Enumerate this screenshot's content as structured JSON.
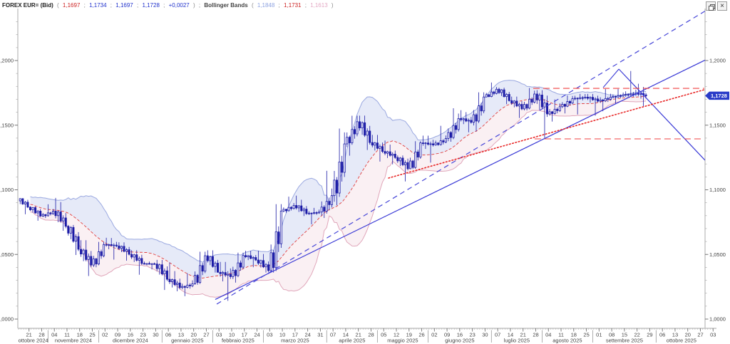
{
  "header": {
    "instrument": "FOREX EUR= (Bid)",
    "po": "(",
    "sc": ";",
    "pc": ")",
    "semi": ";",
    "quote": {
      "open": "1,1697",
      "high": "1,1734",
      "low": "1,1697",
      "last": "1,1728",
      "change": "+0,0027"
    },
    "indicator_label": "Bollinger Bands",
    "indicator_values": {
      "upper": "1,1848",
      "middle": "1,1731",
      "lower": "1,1613"
    }
  },
  "window_controls": {
    "restore_label": "restore",
    "close_label": "×"
  },
  "price_badge": {
    "label": "1,1728",
    "price": 1.1728,
    "bg": "#2a3cc8",
    "text_color": "#ffffff"
  },
  "y_axis": {
    "major": [
      {
        "label": "1,2000",
        "price": 1.2
      },
      {
        "label": "1,1500",
        "price": 1.15
      },
      {
        "label": "1,1000",
        "price": 1.1
      },
      {
        "label": "1,0500",
        "price": 1.05
      },
      {
        "label": "1,0000",
        "price": 1.0
      }
    ],
    "minor_step": 0.01,
    "min": 1.0,
    "max": 1.235
  },
  "x_axis": {
    "day_ticks": [
      "21",
      "28",
      "04",
      "11",
      "18",
      "25",
      "02",
      "09",
      "16",
      "23",
      "30",
      "06",
      "13",
      "20",
      "27",
      "03",
      "10",
      "17",
      "24",
      "03",
      "10",
      "17",
      "24",
      "31",
      "07",
      "14",
      "21",
      "28",
      "05",
      "12",
      "19",
      "26",
      "02",
      "09",
      "16",
      "23",
      "30",
      "07",
      "14",
      "21",
      "28",
      "04",
      "11",
      "18",
      "25",
      "01",
      "08",
      "15",
      "22",
      "29",
      "06",
      "13",
      "20",
      "27",
      "03"
    ],
    "months": [
      {
        "label": "ottobre 2024",
        "from": 0,
        "to": 1
      },
      {
        "label": "novembre 2024",
        "from": 2,
        "to": 5
      },
      {
        "label": "dicembre 2024",
        "from": 6,
        "to": 10
      },
      {
        "label": "gennaio 2025",
        "from": 11,
        "to": 14
      },
      {
        "label": "febbraio 2025",
        "from": 15,
        "to": 18
      },
      {
        "label": "marzo 2025",
        "from": 19,
        "to": 23
      },
      {
        "label": "aprile 2025",
        "from": 24,
        "to": 27
      },
      {
        "label": "maggio 2025",
        "from": 28,
        "to": 31
      },
      {
        "label": "giugno 2025",
        "from": 32,
        "to": 36
      },
      {
        "label": "luglio 2025",
        "from": 37,
        "to": 40
      },
      {
        "label": "agosto 2025",
        "from": 41,
        "to": 44
      },
      {
        "label": "settembre 2025",
        "from": 45,
        "to": 49
      },
      {
        "label": "ottobre 2025",
        "from": 50,
        "to": 53
      }
    ]
  },
  "chart_data": {
    "type": "candlestick",
    "title": "FOREX EUR= (Bid) daily candles with Bollinger Bands, Oct 2024 - Sep 2025",
    "ylim": [
      0.998,
      1.24
    ],
    "bollinger": {
      "period": 20,
      "mult": 2
    },
    "colors": {
      "candle": "#1b1ba6",
      "bb_upper_line": "#9aa8e0",
      "bb_lower_line": "#e0a6ba",
      "bb_mid_line": "#e04040",
      "bb_fill_up": "rgba(155,170,228,0.25)",
      "bb_fill_dn": "rgba(228,170,190,0.18)",
      "trend_blue": "#3a3ad6",
      "level_red": "#f04040",
      "dotted_red": "#e82828"
    },
    "weeks": [
      [
        1.0935,
        1.0935,
        1.0811,
        1.0866
      ],
      [
        1.0866,
        1.0872,
        1.0761,
        1.0797
      ],
      [
        1.0797,
        1.0888,
        1.0782,
        1.0835
      ],
      [
        1.0835,
        1.0937,
        1.0683,
        1.0718
      ],
      [
        1.0718,
        1.0728,
        1.0496,
        1.054
      ],
      [
        1.054,
        1.061,
        1.0333,
        1.0418
      ],
      [
        1.0418,
        1.0597,
        1.0401,
        1.0577
      ],
      [
        1.0577,
        1.0629,
        1.046,
        1.0566
      ],
      [
        1.0566,
        1.0594,
        1.0452,
        1.0501
      ],
      [
        1.0501,
        1.0533,
        1.0343,
        1.043
      ],
      [
        1.043,
        1.0445,
        1.0384,
        1.0426
      ],
      [
        1.0426,
        1.0458,
        1.0225,
        1.0308
      ],
      [
        1.0308,
        1.0437,
        1.0215,
        1.0244
      ],
      [
        1.0244,
        1.0354,
        1.0177,
        1.0273
      ],
      [
        1.0273,
        1.0521,
        1.0266,
        1.049
      ],
      [
        1.049,
        1.0532,
        1.036,
        1.0362
      ],
      [
        1.0362,
        1.0442,
        1.0141,
        1.0328
      ],
      [
        1.0328,
        1.0514,
        1.0282,
        1.0492
      ],
      [
        1.0492,
        1.0528,
        1.0401,
        1.0457
      ],
      [
        1.0457,
        1.0529,
        1.036,
        1.0375
      ],
      [
        1.0375,
        1.0889,
        1.036,
        1.0836
      ],
      [
        1.0836,
        1.0947,
        1.0822,
        1.0879
      ],
      [
        1.0879,
        1.0955,
        1.0797,
        1.0816
      ],
      [
        1.0816,
        1.086,
        1.0733,
        1.0828
      ],
      [
        1.0828,
        1.1147,
        1.0782,
        1.0955
      ],
      [
        1.0955,
        1.1474,
        1.088,
        1.1355
      ],
      [
        1.1355,
        1.1573,
        1.1264,
        1.1527
      ],
      [
        1.1527,
        1.1574,
        1.1308,
        1.1366
      ],
      [
        1.1366,
        1.1425,
        1.1218,
        1.1297
      ],
      [
        1.1297,
        1.1381,
        1.1197,
        1.125
      ],
      [
        1.125,
        1.1266,
        1.1065,
        1.1163
      ],
      [
        1.1163,
        1.1376,
        1.116,
        1.1363
      ],
      [
        1.1363,
        1.1419,
        1.121,
        1.1347
      ],
      [
        1.1347,
        1.1495,
        1.1341,
        1.1397
      ],
      [
        1.1397,
        1.1631,
        1.1372,
        1.1551
      ],
      [
        1.1551,
        1.1616,
        1.1445,
        1.1522
      ],
      [
        1.1522,
        1.1754,
        1.1451,
        1.1718
      ],
      [
        1.1718,
        1.183,
        1.1716,
        1.1778
      ],
      [
        1.1778,
        1.179,
        1.1663,
        1.169
      ],
      [
        1.169,
        1.1721,
        1.1556,
        1.1626
      ],
      [
        1.1626,
        1.1788,
        1.1614,
        1.1741
      ],
      [
        1.1741,
        1.1771,
        1.1392,
        1.1587
      ],
      [
        1.1587,
        1.1699,
        1.1528,
        1.1643
      ],
      [
        1.1643,
        1.173,
        1.1591,
        1.1705
      ],
      [
        1.1705,
        1.1742,
        1.1583,
        1.1717
      ],
      [
        1.1717,
        1.1742,
        1.1574,
        1.1686
      ],
      [
        1.1686,
        1.178,
        1.1608,
        1.1717
      ],
      [
        1.1717,
        1.178,
        1.1662,
        1.1735
      ],
      [
        1.1735,
        1.1919,
        1.172,
        1.1745
      ],
      [
        1.1745,
        1.182,
        1.1646,
        1.1728,
        4
      ]
    ],
    "annotations": [
      {
        "name": "trendline-support-solid",
        "style": "solid",
        "w": 1.2,
        "color": "#3a3ad6",
        "t1": 14.7,
        "p1": 1.0152,
        "t2": 53.36,
        "p2": 1.2003
      },
      {
        "name": "trendline-channel-dashed",
        "style": "dashed",
        "w": 1.2,
        "color": "#4747d8",
        "t1": 14.82,
        "p1": 1.0116,
        "t2": 53.36,
        "p2": 1.2382
      },
      {
        "name": "breakdown-line-solid",
        "style": "solid",
        "w": 1.2,
        "color": "#3a3ad6",
        "t1": 46.56,
        "p1": 1.1934,
        "t2": 53.36,
        "p2": 1.1229
      },
      {
        "name": "peak-left-edge-solid",
        "style": "solid",
        "w": 1.1,
        "color": "#3a3ad6",
        "t1": 45.32,
        "p1": 1.1791,
        "t2": 46.56,
        "p2": 1.1934
      },
      {
        "name": "dotted-support-red",
        "style": "dotted",
        "w": 1.6,
        "color": "#e82828",
        "t1": 28.38,
        "p1": 1.1091,
        "t2": 53.3,
        "p2": 1.1774
      },
      {
        "name": "resistance-level-red-dashed",
        "style": "dashedred",
        "w": 1.1,
        "color": "#f04040",
        "t1": 39.8,
        "p1": 1.1785,
        "t2": 53.3,
        "p2": 1.1785
      },
      {
        "name": "support-level-red-dashed",
        "style": "dashedred",
        "w": 1.1,
        "color": "#f04040",
        "t1": 39.91,
        "p1": 1.1394,
        "t2": 53.3,
        "p2": 1.1394
      }
    ]
  }
}
